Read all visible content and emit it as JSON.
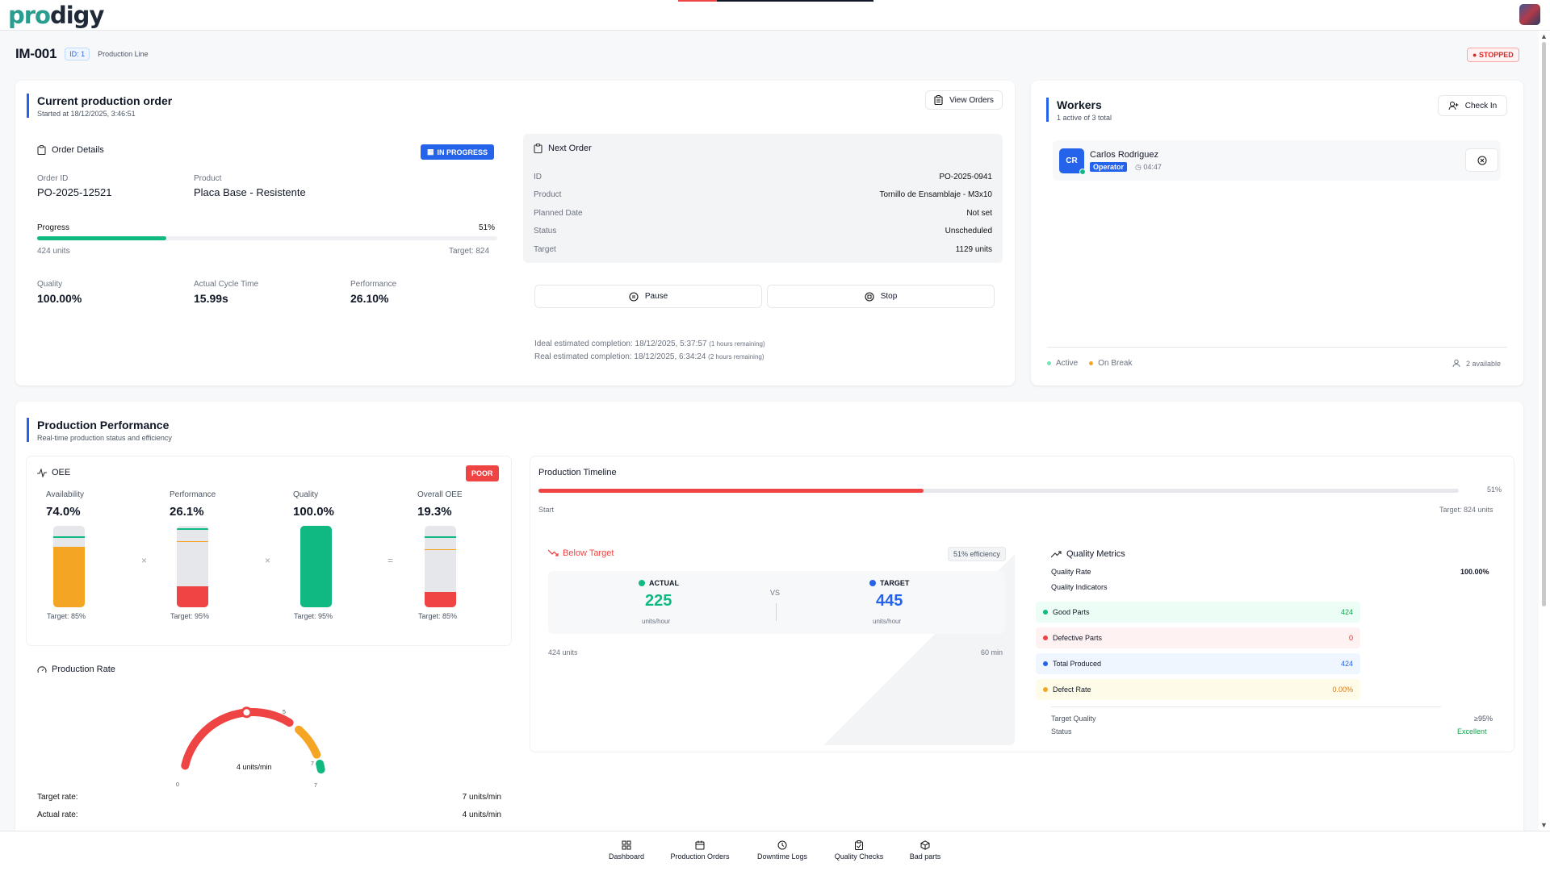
{
  "app": {
    "logo_main": "pro",
    "logo_rest": "digy"
  },
  "machine": {
    "id": "IM-001",
    "id_badge": "ID: 1",
    "line": "Production Line",
    "status": "STOPPED"
  },
  "current_order": {
    "title": "Current production order",
    "started": "Started at 18/12/2025, 3:46:51",
    "view_orders": "View Orders",
    "details_title": "Order Details",
    "status_badge": "IN PROGRESS",
    "order_id_label": "Order ID",
    "order_id": "PO-2025-12521",
    "product_label": "Product",
    "product": "Placa Base - Resistente",
    "progress_label": "Progress",
    "progress_pct": "51%",
    "progress_value": 0.51,
    "units": "424 units",
    "target": "Target: 824",
    "quality_label": "Quality",
    "quality": "100.00%",
    "cycle_label": "Actual Cycle Time",
    "cycle": "15.99s",
    "performance_label": "Performance",
    "performance": "26.10%"
  },
  "next_order": {
    "title": "Next Order",
    "rows": [
      {
        "label": "ID",
        "value": "PO-2025-0941"
      },
      {
        "label": "Product",
        "value": "Tornillo de Ensamblaje - M3x10"
      },
      {
        "label": "Planned Date",
        "value": "Not set"
      },
      {
        "label": "Status",
        "value": "Unscheduled"
      },
      {
        "label": "Target",
        "value": "1129 units"
      }
    ],
    "pause": "Pause",
    "stop": "Stop",
    "ideal": "Ideal estimated completion: 18/12/2025, 5:37:57",
    "ideal_note": "(1 hours remaining)",
    "real": "Real estimated completion: 18/12/2025, 6:34:24",
    "real_note": "(2 hours remaining)"
  },
  "workers": {
    "title": "Workers",
    "subtitle": "1 active of 3 total",
    "check_in": "Check In",
    "worker_initials": "CR",
    "worker_name": "Carlos Rodriguez",
    "worker_role": "Operator",
    "worker_time": "04:47",
    "legend_active": "Active",
    "legend_break": "On Break",
    "available": "2 available"
  },
  "performance": {
    "title": "Production Performance",
    "subtitle": "Real-time production status and efficiency",
    "oee_title": "OEE",
    "oee_badge": "POOR",
    "metrics": [
      {
        "label": "Availability",
        "value": "74.0%",
        "target": "Target: 85%",
        "fill": 0.74,
        "mark": 0.85,
        "color": "#f5a524"
      },
      {
        "label": "Performance",
        "value": "26.1%",
        "target": "Target: 95%",
        "fill": 0.261,
        "mark": 0.95,
        "color": "#ef4444"
      },
      {
        "label": "Quality",
        "value": "100.0%",
        "target": "Target: 95%",
        "fill": 1.0,
        "mark": 0.95,
        "color": "#10b981"
      },
      {
        "label": "Overall OEE",
        "value": "19.3%",
        "target": "Target: 85%",
        "fill": 0.193,
        "mark": 0.85,
        "color": "#ef4444"
      }
    ],
    "op_x": "×",
    "op_eq": "=",
    "rate_title": "Production Rate",
    "gauge_center": "4 units/min",
    "gauge_min": "0",
    "gauge_mid": "5",
    "gauge_hi1": "7",
    "gauge_hi2": "7",
    "gauge_value": 4,
    "gauge_max": 7,
    "target_rate_label": "Target rate:",
    "target_rate": "7 units/min",
    "actual_rate_label": "Actual rate:",
    "actual_rate": "4 units/min"
  },
  "timeline": {
    "title": "Production Timeline",
    "pct": "51%",
    "value": 0.51,
    "start": "Start",
    "target": "Target: 824 units",
    "below": "Below Target",
    "efficiency": "51% efficiency",
    "actual_label": "ACTUAL",
    "actual": "225",
    "actual_unit": "units/hour",
    "vs": "VS",
    "target_label": "TARGET",
    "target_val": "445",
    "target_unit": "units/hour",
    "units_left": "424 units",
    "minutes_right": "60 min"
  },
  "quality": {
    "title": "Quality Metrics",
    "rate_label": "Quality Rate",
    "rate": "100.00%",
    "indicators": "Quality Indicators",
    "rows": [
      {
        "label": "Good Parts",
        "value": "424"
      },
      {
        "label": "Defective Parts",
        "value": "0"
      },
      {
        "label": "Total Produced",
        "value": "424"
      },
      {
        "label": "Defect Rate",
        "value": "0.00%"
      }
    ],
    "target_label": "Target Quality",
    "target": "≥95%",
    "status_label": "Status",
    "status": "Excellent"
  },
  "nav": [
    {
      "label": "Dashboard"
    },
    {
      "label": "Production Orders"
    },
    {
      "label": "Downtime Logs"
    },
    {
      "label": "Quality Checks"
    },
    {
      "label": "Bad parts"
    }
  ],
  "colors": {
    "accent": "#2563eb",
    "green": "#10b981",
    "red": "#ef4444",
    "orange": "#f5a524"
  }
}
